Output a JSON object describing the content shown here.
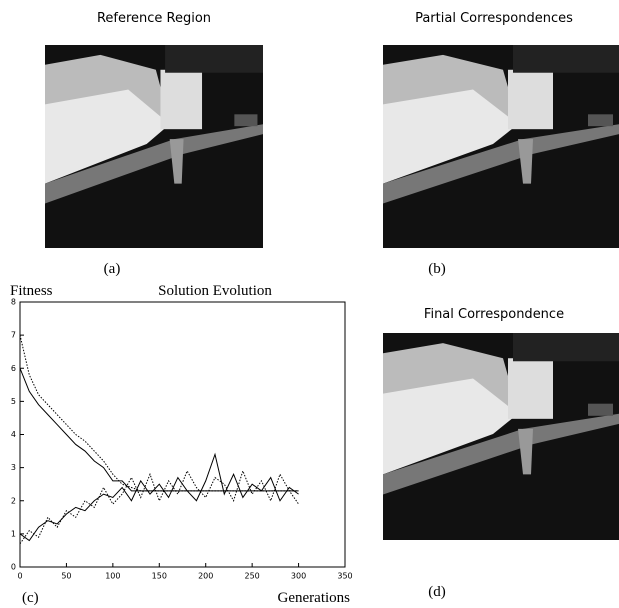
{
  "panels": {
    "a": {
      "title": "Reference Region",
      "caption": "(a)"
    },
    "b": {
      "title": "Partial Correspondences",
      "caption": "(b)"
    },
    "d": {
      "title": "Final Correspondence",
      "caption": "(d)"
    }
  },
  "chart_data": {
    "type": "line",
    "title": "Solution Evolution",
    "y_label": "Fitness",
    "x_label": "Generations",
    "caption": "(c)",
    "xlim": [
      0,
      350
    ],
    "xticks": [
      0,
      50,
      100,
      150,
      200,
      250,
      300,
      350
    ],
    "ylim": [
      0,
      8
    ],
    "yticks": [
      0,
      1,
      2,
      3,
      4,
      5,
      6,
      7,
      8
    ],
    "x": [
      0,
      10,
      20,
      30,
      40,
      50,
      60,
      70,
      80,
      90,
      100,
      110,
      120,
      130,
      140,
      150,
      160,
      170,
      180,
      190,
      200,
      210,
      220,
      230,
      240,
      250,
      260,
      270,
      280,
      290,
      300
    ],
    "series": [
      {
        "color": "#000000",
        "style": "solid",
        "values": [
          6.0,
          5.3,
          4.9,
          4.6,
          4.3,
          4.0,
          3.7,
          3.5,
          3.2,
          3.0,
          2.6,
          2.6,
          2.3,
          2.3,
          2.3,
          2.3,
          2.3,
          2.3,
          2.3,
          2.3,
          2.3,
          2.3,
          2.3,
          2.3,
          2.3,
          2.3,
          2.3,
          2.3,
          2.3,
          2.3,
          2.3
        ]
      },
      {
        "color": "#000000",
        "style": "dotted",
        "values": [
          7.0,
          5.8,
          5.2,
          4.9,
          4.6,
          4.3,
          4.0,
          3.8,
          3.5,
          3.2,
          2.8,
          2.5,
          2.4,
          2.3,
          2.3,
          2.3,
          2.3,
          2.3,
          2.3,
          2.3,
          2.3,
          2.3,
          2.3,
          2.3,
          2.3,
          2.3,
          2.3,
          2.3,
          2.3,
          2.3,
          2.3
        ]
      },
      {
        "color": "#000000",
        "style": "solid",
        "values": [
          1.0,
          0.8,
          1.2,
          1.4,
          1.3,
          1.6,
          1.8,
          1.7,
          2.0,
          2.2,
          2.1,
          2.4,
          2.0,
          2.6,
          2.2,
          2.5,
          2.1,
          2.7,
          2.3,
          2.0,
          2.6,
          3.4,
          2.2,
          2.8,
          2.1,
          2.5,
          2.3,
          2.7,
          2.0,
          2.4,
          2.2
        ]
      },
      {
        "color": "#000000",
        "style": "dotted",
        "values": [
          0.7,
          1.1,
          0.9,
          1.5,
          1.2,
          1.7,
          1.5,
          2.0,
          1.8,
          2.4,
          1.9,
          2.2,
          2.7,
          2.1,
          2.8,
          2.0,
          2.6,
          2.2,
          2.9,
          2.4,
          2.1,
          2.7,
          2.5,
          2.0,
          2.9,
          2.2,
          2.6,
          2.0,
          2.8,
          2.3,
          1.9
        ]
      }
    ]
  }
}
